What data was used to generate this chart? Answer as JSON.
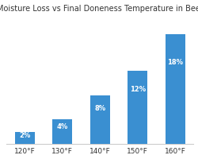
{
  "title": "Moisture Loss vs Final Doneness Temperature in Beef",
  "categories": [
    "120°F",
    "130°F",
    "140°F",
    "150°F",
    "160°F"
  ],
  "values": [
    2,
    4,
    8,
    12,
    18
  ],
  "labels": [
    "2%",
    "4%",
    "8%",
    "12%",
    "18%"
  ],
  "bar_color": "#3a8fd1",
  "label_color": "#ffffff",
  "title_color": "#333333",
  "background_color": "#ffffff",
  "grid_color": "#dddddd",
  "spine_color": "#cccccc",
  "ylim": [
    0,
    21
  ],
  "title_fontsize": 7.0,
  "label_fontsize": 6.0,
  "tick_fontsize": 6.5,
  "bar_width": 0.52
}
